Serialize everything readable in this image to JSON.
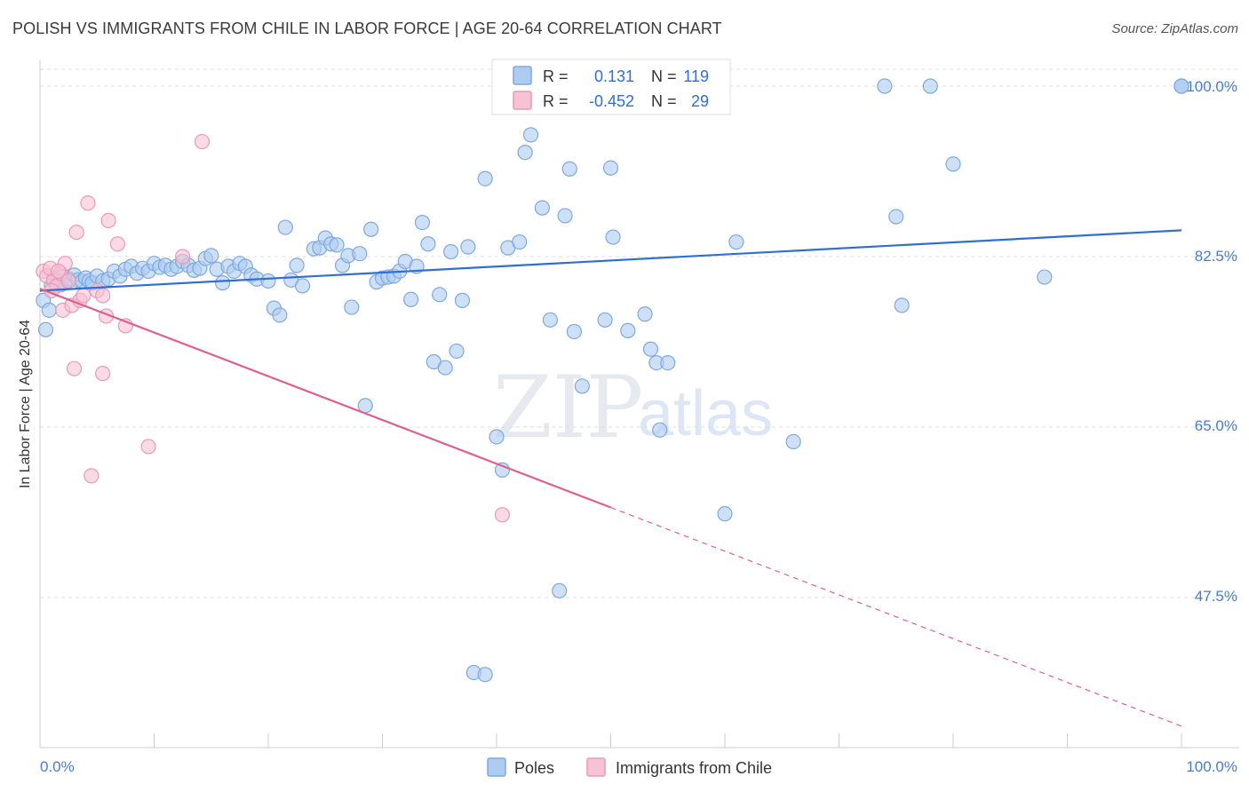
{
  "title": "POLISH VS IMMIGRANTS FROM CHILE IN LABOR FORCE | AGE 20-64 CORRELATION CHART",
  "source": "Source: ZipAtlas.com",
  "watermark": {
    "zip": "ZIP",
    "atlas": "atlas"
  },
  "colors": {
    "poles_fill": "#aecbf0",
    "poles_stroke": "#7ea8df",
    "poles_line": "#2f6fd1",
    "chile_fill": "#f7c2d3",
    "chile_stroke": "#e99ab4",
    "chile_line": "#e0608d",
    "tick_text": "#4a7cc9",
    "grid": "#dcdcdc"
  },
  "legend": {
    "rows": [
      {
        "r_label": "R =",
        "r_value": "0.131",
        "n_label": "N =",
        "n_value": "119"
      },
      {
        "r_label": "R =",
        "r_value": "-0.452",
        "n_label": "N =",
        "n_value": "29"
      }
    ]
  },
  "chart_data": {
    "type": "scatter",
    "title": "POLISH VS IMMIGRANTS FROM CHILE IN LABOR FORCE | AGE 20-64 CORRELATION CHART",
    "xlabel": "",
    "ylabel": "In Labor Force | Age 20-64",
    "xlim": [
      0,
      100
    ],
    "ylim": [
      32,
      102
    ],
    "x_tick_labels": [
      "0.0%",
      "100.0%"
    ],
    "y_ticks": [
      47.5,
      65.0,
      82.5,
      100.0
    ],
    "y_tick_labels": [
      "47.5%",
      "65.0%",
      "82.5%",
      "100.0%"
    ],
    "grid": "horizontal dashed",
    "legend_placement": "bottom-center",
    "series": [
      {
        "name": "Poles",
        "r": 0.131,
        "n": 119,
        "trend": {
          "x": [
            0,
            100
          ],
          "y": [
            79.0,
            85.2
          ],
          "dashed_from": null
        },
        "points": [
          [
            0.3,
            78.0
          ],
          [
            0.5,
            75.0
          ],
          [
            0.8,
            77.0
          ],
          [
            1.0,
            79.5
          ],
          [
            1.2,
            80.3
          ],
          [
            1.5,
            80.0
          ],
          [
            1.8,
            79.6
          ],
          [
            2.0,
            80.5
          ],
          [
            2.2,
            79.8
          ],
          [
            2.5,
            80.2
          ],
          [
            3.0,
            80.6
          ],
          [
            3.3,
            80.1
          ],
          [
            3.7,
            80.0
          ],
          [
            4.0,
            80.3
          ],
          [
            4.3,
            80.0
          ],
          [
            4.6,
            79.8
          ],
          [
            5.0,
            80.5
          ],
          [
            5.5,
            80.0
          ],
          [
            6.0,
            80.2
          ],
          [
            6.5,
            81.0
          ],
          [
            7.0,
            80.5
          ],
          [
            7.5,
            81.2
          ],
          [
            8.0,
            81.5
          ],
          [
            8.5,
            80.8
          ],
          [
            9.0,
            81.3
          ],
          [
            9.5,
            81.0
          ],
          [
            10.0,
            81.8
          ],
          [
            10.5,
            81.4
          ],
          [
            11.0,
            81.6
          ],
          [
            11.5,
            81.2
          ],
          [
            12.0,
            81.5
          ],
          [
            12.5,
            82.0
          ],
          [
            13.0,
            81.6
          ],
          [
            13.5,
            81.1
          ],
          [
            14.0,
            81.3
          ],
          [
            14.5,
            82.3
          ],
          [
            15.0,
            82.6
          ],
          [
            15.5,
            81.2
          ],
          [
            16.0,
            79.8
          ],
          [
            16.5,
            81.5
          ],
          [
            17.0,
            81.0
          ],
          [
            17.5,
            81.8
          ],
          [
            18.0,
            81.5
          ],
          [
            18.5,
            80.6
          ],
          [
            19.0,
            80.2
          ],
          [
            20.0,
            80.0
          ],
          [
            20.5,
            77.2
          ],
          [
            21.0,
            76.5
          ],
          [
            21.5,
            85.5
          ],
          [
            22.0,
            80.1
          ],
          [
            22.5,
            81.6
          ],
          [
            23.0,
            79.5
          ],
          [
            24.0,
            83.3
          ],
          [
            24.5,
            83.4
          ],
          [
            25.0,
            84.4
          ],
          [
            25.5,
            83.8
          ],
          [
            26.0,
            83.7
          ],
          [
            26.5,
            81.6
          ],
          [
            27.0,
            82.6
          ],
          [
            27.3,
            77.3
          ],
          [
            28.0,
            82.8
          ],
          [
            28.5,
            67.2
          ],
          [
            29.0,
            85.3
          ],
          [
            29.5,
            79.9
          ],
          [
            30.0,
            80.3
          ],
          [
            30.5,
            80.4
          ],
          [
            31.0,
            80.5
          ],
          [
            31.5,
            81.0
          ],
          [
            32.0,
            82.0
          ],
          [
            32.5,
            78.1
          ],
          [
            33.0,
            81.5
          ],
          [
            33.5,
            86.0
          ],
          [
            34.0,
            83.8
          ],
          [
            34.5,
            71.7
          ],
          [
            35.0,
            78.6
          ],
          [
            35.5,
            71.1
          ],
          [
            36.0,
            83.0
          ],
          [
            36.5,
            72.8
          ],
          [
            37.0,
            78.0
          ],
          [
            37.5,
            83.5
          ],
          [
            38.0,
            39.8
          ],
          [
            39.0,
            39.6
          ],
          [
            39.0,
            90.5
          ],
          [
            40.0,
            64.0
          ],
          [
            40.5,
            60.6
          ],
          [
            41.0,
            83.4
          ],
          [
            42.0,
            84.0
          ],
          [
            42.5,
            93.2
          ],
          [
            43.0,
            95.0
          ],
          [
            44.0,
            87.5
          ],
          [
            44.7,
            76.0
          ],
          [
            45.5,
            48.2
          ],
          [
            46.0,
            86.7
          ],
          [
            46.4,
            91.5
          ],
          [
            46.8,
            74.8
          ],
          [
            47.5,
            69.2
          ],
          [
            48.0,
            100.0
          ],
          [
            49.5,
            76.0
          ],
          [
            50.0,
            91.6
          ],
          [
            50.2,
            84.5
          ],
          [
            51.5,
            74.9
          ],
          [
            53.0,
            76.6
          ],
          [
            53.5,
            73.0
          ],
          [
            54.0,
            71.6
          ],
          [
            54.3,
            64.7
          ],
          [
            55.0,
            71.6
          ],
          [
            56.0,
            100.0
          ],
          [
            60.0,
            56.1
          ],
          [
            61.0,
            84.0
          ],
          [
            66.0,
            63.5
          ],
          [
            74.0,
            100.0
          ],
          [
            75.0,
            86.6
          ],
          [
            75.5,
            77.5
          ],
          [
            78.0,
            100.0
          ],
          [
            80.0,
            92.0
          ],
          [
            88.0,
            80.4
          ],
          [
            100.0,
            100.0
          ],
          [
            100.0,
            100.0
          ],
          [
            100.0,
            100.0
          ]
        ]
      },
      {
        "name": "Immigrants from Chile",
        "r": -0.452,
        "n": 29,
        "trend": {
          "x": [
            0,
            100
          ],
          "y": [
            79.2,
            34.3
          ],
          "solid_until_x": 50
        },
        "points": [
          [
            0.3,
            81.0
          ],
          [
            0.6,
            80.5
          ],
          [
            0.9,
            81.3
          ],
          [
            1.2,
            80.0
          ],
          [
            1.5,
            79.5
          ],
          [
            1.8,
            80.8
          ],
          [
            2.0,
            77.0
          ],
          [
            2.2,
            81.8
          ],
          [
            2.5,
            80.0
          ],
          [
            2.8,
            77.5
          ],
          [
            3.0,
            71.0
          ],
          [
            3.2,
            85.0
          ],
          [
            3.5,
            78.0
          ],
          [
            3.8,
            78.5
          ],
          [
            4.2,
            88.0
          ],
          [
            4.5,
            60.0
          ],
          [
            5.0,
            79.0
          ],
          [
            5.5,
            78.5
          ],
          [
            5.5,
            70.5
          ],
          [
            5.8,
            76.4
          ],
          [
            6.0,
            86.2
          ],
          [
            6.8,
            83.8
          ],
          [
            7.5,
            75.4
          ],
          [
            9.5,
            63.0
          ],
          [
            12.5,
            82.5
          ],
          [
            14.2,
            94.3
          ],
          [
            40.5,
            56.0
          ],
          [
            1.0,
            79.0
          ],
          [
            1.6,
            81.0
          ]
        ]
      }
    ]
  },
  "y_axis_label": "In Labor Force | Age 20-64",
  "x_axis": {
    "left_label": "0.0%",
    "right_label": "100.0%"
  },
  "y_axis": {
    "labels": [
      "47.5%",
      "65.0%",
      "82.5%",
      "100.0%"
    ]
  },
  "bottom_legend": [
    {
      "label": "Poles"
    },
    {
      "label": "Immigrants from Chile"
    }
  ]
}
